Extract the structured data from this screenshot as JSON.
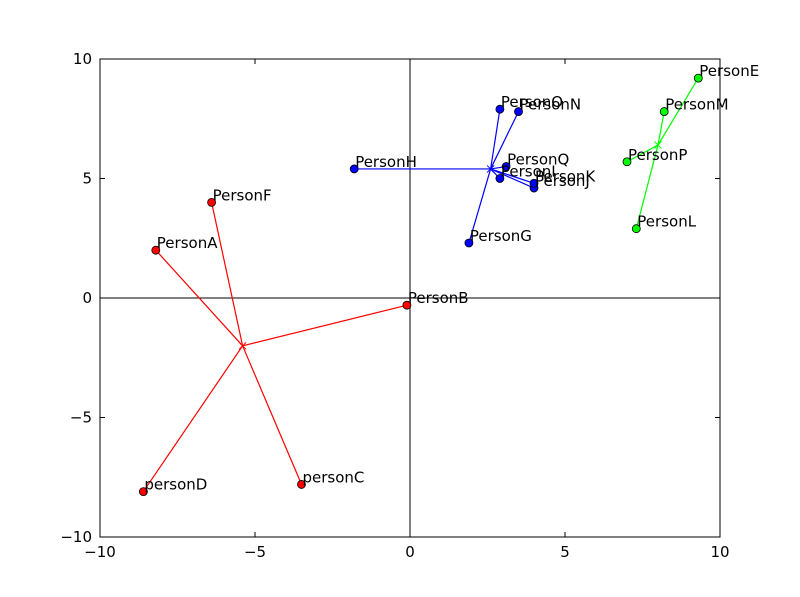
{
  "chart_data": {
    "type": "scatter",
    "title": "",
    "xlabel": "",
    "ylabel": "",
    "xlim": [
      -10,
      10
    ],
    "ylim": [
      -10,
      10
    ],
    "xticks": [
      "−10",
      "−5",
      "0",
      "5",
      "10"
    ],
    "yticks": [
      "−10",
      "−5",
      "0",
      "5",
      "10"
    ],
    "grid": false,
    "axis_lines_at_origin": true,
    "clusters": [
      {
        "color": "#ff0000",
        "centroid": {
          "x": -5.4,
          "y": -2.0
        },
        "points": [
          {
            "label": "PersonA",
            "x": -8.2,
            "y": 2.0
          },
          {
            "label": "PersonB",
            "x": -0.1,
            "y": -0.3
          },
          {
            "label": "personC",
            "x": -3.5,
            "y": -7.8
          },
          {
            "label": "personD",
            "x": -8.6,
            "y": -8.1
          },
          {
            "label": "PersonF",
            "x": -6.4,
            "y": 4.0
          }
        ]
      },
      {
        "color": "#0000ff",
        "centroid": {
          "x": 2.6,
          "y": 5.4
        },
        "points": [
          {
            "label": "PersonG",
            "x": 1.9,
            "y": 2.3
          },
          {
            "label": "PersonH",
            "x": -1.8,
            "y": 5.4
          },
          {
            "label": "PersonI",
            "x": 2.9,
            "y": 5.0
          },
          {
            "label": "PersonJ",
            "x": 4.0,
            "y": 4.6
          },
          {
            "label": "PersonK",
            "x": 4.0,
            "y": 4.8
          },
          {
            "label": "PersonN",
            "x": 3.5,
            "y": 7.8
          },
          {
            "label": "PersonO",
            "x": 2.9,
            "y": 7.9
          },
          {
            "label": "PersonQ",
            "x": 3.1,
            "y": 5.5
          }
        ]
      },
      {
        "color": "#00ff00",
        "centroid": {
          "x": 8.0,
          "y": 6.4
        },
        "points": [
          {
            "label": "PersonE",
            "x": 9.3,
            "y": 9.2
          },
          {
            "label": "PersonL",
            "x": 7.3,
            "y": 2.9
          },
          {
            "label": "PersonM",
            "x": 8.2,
            "y": 7.8
          },
          {
            "label": "PersonP",
            "x": 7.0,
            "y": 5.7
          }
        ]
      }
    ]
  }
}
